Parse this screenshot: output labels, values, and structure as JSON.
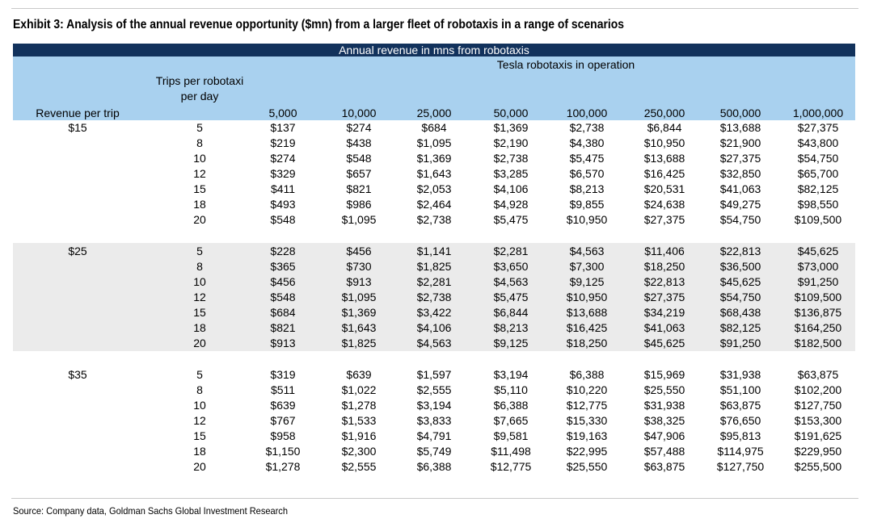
{
  "title": "Exhibit 3: Analysis of the annual revenue opportunity ($mn) from a larger fleet of robotaxis in a range of scenarios",
  "table": {
    "banner": "Annual revenue in mns from robotaxis",
    "subheader": "Tesla robotaxis in operation",
    "trips_header": "Trips per robotaxi per day",
    "revenue_header": "Revenue per trip",
    "columns": [
      "5,000",
      "10,000",
      "25,000",
      "50,000",
      "100,000",
      "250,000",
      "500,000",
      "1,000,000"
    ],
    "groups": [
      {
        "revenue": "$15",
        "rows": [
          {
            "trips": "5",
            "values": [
              "$137",
              "$274",
              "$684",
              "$1,369",
              "$2,738",
              "$6,844",
              "$13,688",
              "$27,375"
            ]
          },
          {
            "trips": "8",
            "values": [
              "$219",
              "$438",
              "$1,095",
              "$2,190",
              "$4,380",
              "$10,950",
              "$21,900",
              "$43,800"
            ]
          },
          {
            "trips": "10",
            "values": [
              "$274",
              "$548",
              "$1,369",
              "$2,738",
              "$5,475",
              "$13,688",
              "$27,375",
              "$54,750"
            ]
          },
          {
            "trips": "12",
            "values": [
              "$329",
              "$657",
              "$1,643",
              "$3,285",
              "$6,570",
              "$16,425",
              "$32,850",
              "$65,700"
            ]
          },
          {
            "trips": "15",
            "values": [
              "$411",
              "$821",
              "$2,053",
              "$4,106",
              "$8,213",
              "$20,531",
              "$41,063",
              "$82,125"
            ]
          },
          {
            "trips": "18",
            "values": [
              "$493",
              "$986",
              "$2,464",
              "$4,928",
              "$9,855",
              "$24,638",
              "$49,275",
              "$98,550"
            ]
          },
          {
            "trips": "20",
            "values": [
              "$548",
              "$1,095",
              "$2,738",
              "$5,475",
              "$10,950",
              "$27,375",
              "$54,750",
              "$109,500"
            ]
          }
        ]
      },
      {
        "revenue": "$25",
        "rows": [
          {
            "trips": "5",
            "values": [
              "$228",
              "$456",
              "$1,141",
              "$2,281",
              "$4,563",
              "$11,406",
              "$22,813",
              "$45,625"
            ]
          },
          {
            "trips": "8",
            "values": [
              "$365",
              "$730",
              "$1,825",
              "$3,650",
              "$7,300",
              "$18,250",
              "$36,500",
              "$73,000"
            ]
          },
          {
            "trips": "10",
            "values": [
              "$456",
              "$913",
              "$2,281",
              "$4,563",
              "$9,125",
              "$22,813",
              "$45,625",
              "$91,250"
            ]
          },
          {
            "trips": "12",
            "values": [
              "$548",
              "$1,095",
              "$2,738",
              "$5,475",
              "$10,950",
              "$27,375",
              "$54,750",
              "$109,500"
            ]
          },
          {
            "trips": "15",
            "values": [
              "$684",
              "$1,369",
              "$3,422",
              "$6,844",
              "$13,688",
              "$34,219",
              "$68,438",
              "$136,875"
            ]
          },
          {
            "trips": "18",
            "values": [
              "$821",
              "$1,643",
              "$4,106",
              "$8,213",
              "$16,425",
              "$41,063",
              "$82,125",
              "$164,250"
            ]
          },
          {
            "trips": "20",
            "values": [
              "$913",
              "$1,825",
              "$4,563",
              "$9,125",
              "$18,250",
              "$45,625",
              "$91,250",
              "$182,500"
            ]
          }
        ]
      },
      {
        "revenue": "$35",
        "rows": [
          {
            "trips": "5",
            "values": [
              "$319",
              "$639",
              "$1,597",
              "$3,194",
              "$6,388",
              "$15,969",
              "$31,938",
              "$63,875"
            ]
          },
          {
            "trips": "8",
            "values": [
              "$511",
              "$1,022",
              "$2,555",
              "$5,110",
              "$10,220",
              "$25,550",
              "$51,100",
              "$102,200"
            ]
          },
          {
            "trips": "10",
            "values": [
              "$639",
              "$1,278",
              "$3,194",
              "$6,388",
              "$12,775",
              "$31,938",
              "$63,875",
              "$127,750"
            ]
          },
          {
            "trips": "12",
            "values": [
              "$767",
              "$1,533",
              "$3,833",
              "$7,665",
              "$15,330",
              "$38,325",
              "$76,650",
              "$153,300"
            ]
          },
          {
            "trips": "15",
            "values": [
              "$958",
              "$1,916",
              "$4,791",
              "$9,581",
              "$19,163",
              "$47,906",
              "$95,813",
              "$191,625"
            ]
          },
          {
            "trips": "18",
            "values": [
              "$1,150",
              "$2,300",
              "$5,749",
              "$11,498",
              "$22,995",
              "$57,488",
              "$114,975",
              "$229,950"
            ]
          },
          {
            "trips": "20",
            "values": [
              "$1,278",
              "$2,555",
              "$6,388",
              "$12,775",
              "$25,550",
              "$63,875",
              "$127,750",
              "$255,500"
            ]
          }
        ]
      }
    ]
  },
  "source": "Source: Company data, Goldman Sachs Global Investment Research"
}
